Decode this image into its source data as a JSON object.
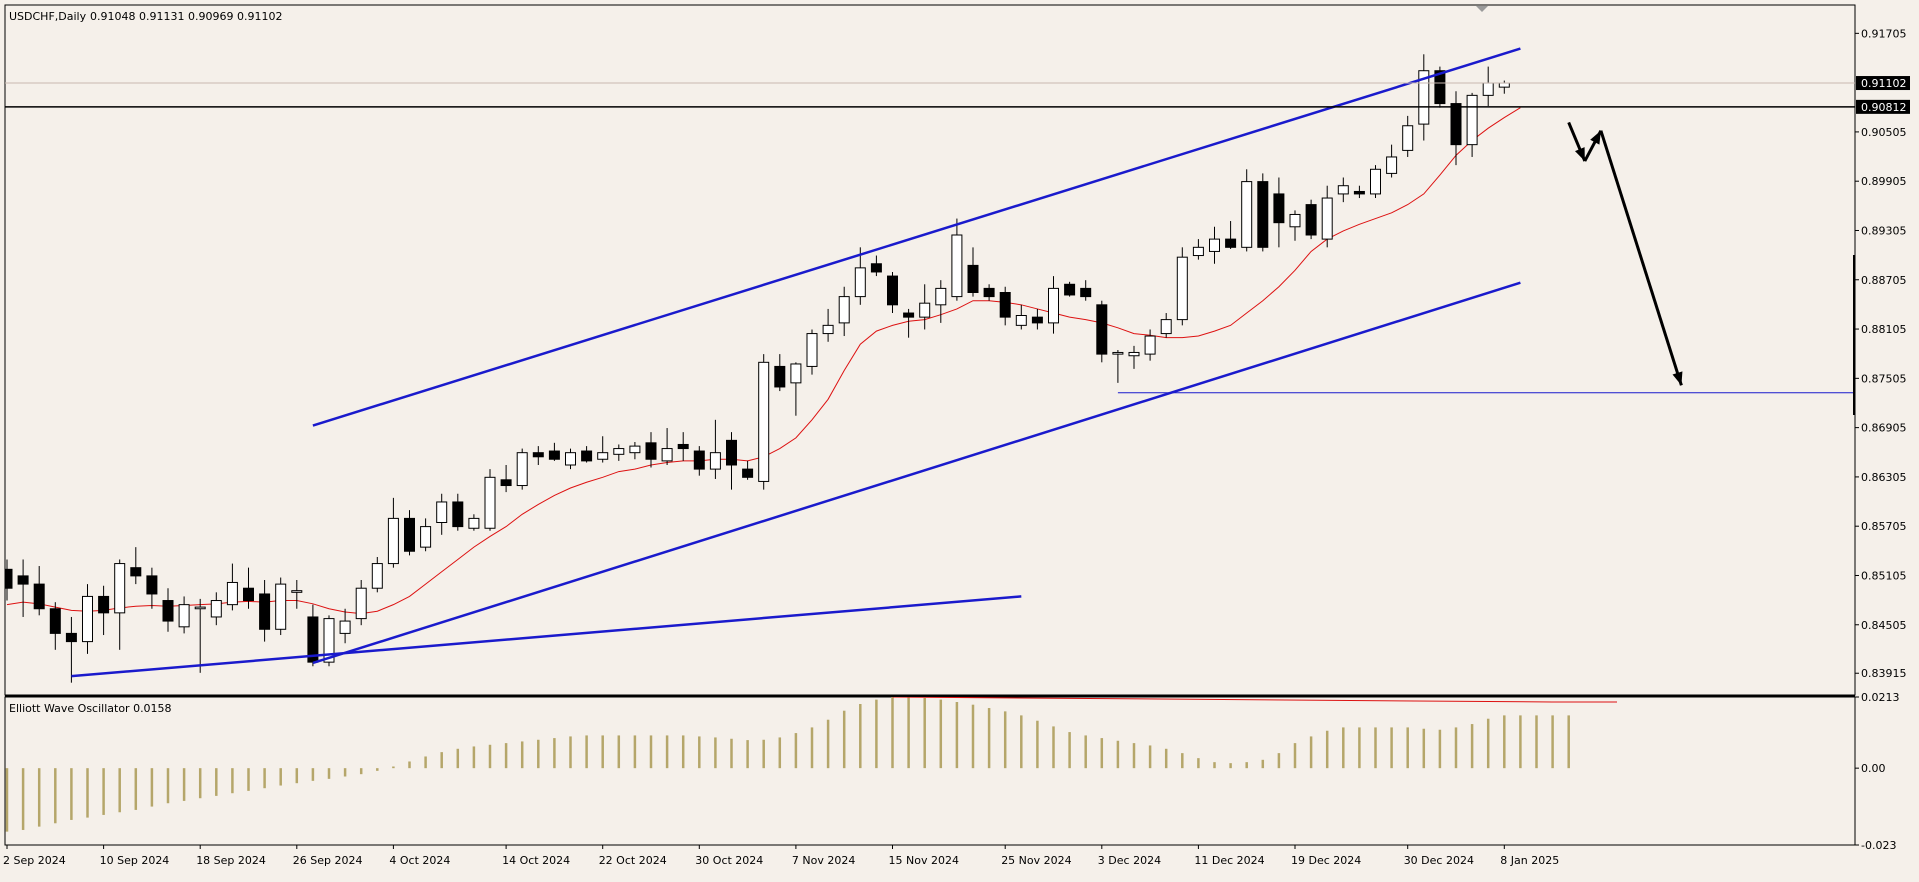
{
  "header": {
    "symbol_tf": "USDCHF,Daily",
    "ohlc": "0.91048 0.91131 0.90969 0.91102"
  },
  "oscillator": {
    "label": "Elliott Wave Oscillator 0.0158",
    "axis_labels": [
      "0.0213",
      "0.00",
      "-0.023"
    ]
  },
  "price_axis": {
    "labels": [
      "0.91705",
      "0.90505",
      "0.89905",
      "0.89305",
      "0.88705",
      "0.88105",
      "0.87505",
      "0.86905",
      "0.86305",
      "0.85705",
      "0.85105",
      "0.84505",
      "0.83915"
    ],
    "current_price_tag": "0.91102",
    "level_tag": "0.90812"
  },
  "time_axis": {
    "labels": [
      "2 Sep 2024",
      "10 Sep 2024",
      "18 Sep 2024",
      "26 Sep 2024",
      "4 Oct 2024",
      "14 Oct 2024",
      "22 Oct 2024",
      "30 Oct 2024",
      "7 Nov 2024",
      "15 Nov 2024",
      "25 Nov 2024",
      "3 Dec 2024",
      "11 Dec 2024",
      "19 Dec 2024",
      "30 Dec 2024",
      "8 Jan 2025"
    ]
  },
  "colors": {
    "background": "#f5f0ea",
    "channel": "#1a1acc",
    "ma_line": "#dd1111",
    "oscillator_bars": "#b5a66a",
    "bull_body": "#ffffff",
    "bear_body": "#000000"
  },
  "chart_data": {
    "type": "candlestick",
    "symbol": "USDCHF",
    "timeframe": "Daily",
    "ylim": [
      0.8365,
      0.9205
    ],
    "candles": [
      {
        "o": 0.8518,
        "h": 0.853,
        "l": 0.848,
        "c": 0.8495
      },
      {
        "o": 0.851,
        "h": 0.853,
        "l": 0.846,
        "c": 0.85
      },
      {
        "o": 0.85,
        "h": 0.8522,
        "l": 0.8462,
        "c": 0.847
      },
      {
        "o": 0.847,
        "h": 0.8478,
        "l": 0.842,
        "c": 0.844
      },
      {
        "o": 0.844,
        "h": 0.846,
        "l": 0.838,
        "c": 0.843
      },
      {
        "o": 0.843,
        "h": 0.85,
        "l": 0.8415,
        "c": 0.8485
      },
      {
        "o": 0.8485,
        "h": 0.8498,
        "l": 0.8438,
        "c": 0.8465
      },
      {
        "o": 0.8465,
        "h": 0.853,
        "l": 0.842,
        "c": 0.8525
      },
      {
        "o": 0.852,
        "h": 0.8545,
        "l": 0.85,
        "c": 0.851
      },
      {
        "o": 0.851,
        "h": 0.852,
        "l": 0.847,
        "c": 0.8488
      },
      {
        "o": 0.848,
        "h": 0.8495,
        "l": 0.8442,
        "c": 0.8455
      },
      {
        "o": 0.8448,
        "h": 0.8485,
        "l": 0.844,
        "c": 0.8475
      },
      {
        "o": 0.847,
        "h": 0.8482,
        "l": 0.8392,
        "c": 0.8472
      },
      {
        "o": 0.846,
        "h": 0.849,
        "l": 0.845,
        "c": 0.848
      },
      {
        "o": 0.8475,
        "h": 0.8525,
        "l": 0.8468,
        "c": 0.8502
      },
      {
        "o": 0.8495,
        "h": 0.852,
        "l": 0.847,
        "c": 0.848
      },
      {
        "o": 0.8488,
        "h": 0.8505,
        "l": 0.843,
        "c": 0.8445
      },
      {
        "o": 0.8445,
        "h": 0.8508,
        "l": 0.8438,
        "c": 0.85
      },
      {
        "o": 0.849,
        "h": 0.8505,
        "l": 0.847,
        "c": 0.8492
      },
      {
        "o": 0.846,
        "h": 0.8475,
        "l": 0.84,
        "c": 0.8405
      },
      {
        "o": 0.8405,
        "h": 0.8462,
        "l": 0.84,
        "c": 0.8458
      },
      {
        "o": 0.844,
        "h": 0.847,
        "l": 0.8428,
        "c": 0.8455
      },
      {
        "o": 0.8458,
        "h": 0.8505,
        "l": 0.845,
        "c": 0.8495
      },
      {
        "o": 0.8495,
        "h": 0.8533,
        "l": 0.849,
        "c": 0.8525
      },
      {
        "o": 0.8525,
        "h": 0.8605,
        "l": 0.852,
        "c": 0.858
      },
      {
        "o": 0.858,
        "h": 0.859,
        "l": 0.8535,
        "c": 0.854
      },
      {
        "o": 0.8545,
        "h": 0.858,
        "l": 0.854,
        "c": 0.857
      },
      {
        "o": 0.8575,
        "h": 0.861,
        "l": 0.856,
        "c": 0.86
      },
      {
        "o": 0.86,
        "h": 0.861,
        "l": 0.8565,
        "c": 0.857
      },
      {
        "o": 0.8568,
        "h": 0.8585,
        "l": 0.8565,
        "c": 0.858
      },
      {
        "o": 0.8568,
        "h": 0.864,
        "l": 0.8565,
        "c": 0.863
      },
      {
        "o": 0.8627,
        "h": 0.8645,
        "l": 0.8612,
        "c": 0.862
      },
      {
        "o": 0.862,
        "h": 0.8665,
        "l": 0.8615,
        "c": 0.866
      },
      {
        "o": 0.866,
        "h": 0.8668,
        "l": 0.8645,
        "c": 0.8655
      },
      {
        "o": 0.8662,
        "h": 0.8672,
        "l": 0.865,
        "c": 0.8652
      },
      {
        "o": 0.8645,
        "h": 0.8665,
        "l": 0.864,
        "c": 0.866
      },
      {
        "o": 0.8662,
        "h": 0.8668,
        "l": 0.8648,
        "c": 0.865
      },
      {
        "o": 0.8652,
        "h": 0.868,
        "l": 0.8648,
        "c": 0.866
      },
      {
        "o": 0.8658,
        "h": 0.867,
        "l": 0.865,
        "c": 0.8665
      },
      {
        "o": 0.866,
        "h": 0.8673,
        "l": 0.8652,
        "c": 0.8668
      },
      {
        "o": 0.8672,
        "h": 0.8685,
        "l": 0.8642,
        "c": 0.8652
      },
      {
        "o": 0.865,
        "h": 0.869,
        "l": 0.8645,
        "c": 0.8665
      },
      {
        "o": 0.867,
        "h": 0.8685,
        "l": 0.865,
        "c": 0.8665
      },
      {
        "o": 0.8662,
        "h": 0.8668,
        "l": 0.8632,
        "c": 0.864
      },
      {
        "o": 0.864,
        "h": 0.87,
        "l": 0.8628,
        "c": 0.866
      },
      {
        "o": 0.8675,
        "h": 0.8685,
        "l": 0.8615,
        "c": 0.8645
      },
      {
        "o": 0.864,
        "h": 0.865,
        "l": 0.8627,
        "c": 0.863
      },
      {
        "o": 0.8625,
        "h": 0.878,
        "l": 0.8615,
        "c": 0.877
      },
      {
        "o": 0.8765,
        "h": 0.878,
        "l": 0.8735,
        "c": 0.874
      },
      {
        "o": 0.8745,
        "h": 0.877,
        "l": 0.8705,
        "c": 0.8768
      },
      {
        "o": 0.8765,
        "h": 0.881,
        "l": 0.8755,
        "c": 0.8805
      },
      {
        "o": 0.8805,
        "h": 0.8835,
        "l": 0.8795,
        "c": 0.8815
      },
      {
        "o": 0.8818,
        "h": 0.8862,
        "l": 0.8802,
        "c": 0.885
      },
      {
        "o": 0.885,
        "h": 0.891,
        "l": 0.884,
        "c": 0.8885
      },
      {
        "o": 0.889,
        "h": 0.89,
        "l": 0.8875,
        "c": 0.888
      },
      {
        "o": 0.8875,
        "h": 0.888,
        "l": 0.883,
        "c": 0.884
      },
      {
        "o": 0.883,
        "h": 0.8835,
        "l": 0.88,
        "c": 0.8825
      },
      {
        "o": 0.8825,
        "h": 0.8865,
        "l": 0.881,
        "c": 0.8842
      },
      {
        "o": 0.884,
        "h": 0.887,
        "l": 0.8818,
        "c": 0.886
      },
      {
        "o": 0.885,
        "h": 0.8945,
        "l": 0.8845,
        "c": 0.8925
      },
      {
        "o": 0.8888,
        "h": 0.891,
        "l": 0.885,
        "c": 0.8855
      },
      {
        "o": 0.886,
        "h": 0.8865,
        "l": 0.8845,
        "c": 0.885
      },
      {
        "o": 0.8855,
        "h": 0.8862,
        "l": 0.8815,
        "c": 0.8825
      },
      {
        "o": 0.8815,
        "h": 0.884,
        "l": 0.881,
        "c": 0.8827
      },
      {
        "o": 0.8825,
        "h": 0.8835,
        "l": 0.881,
        "c": 0.8818
      },
      {
        "o": 0.8818,
        "h": 0.8875,
        "l": 0.8805,
        "c": 0.886
      },
      {
        "o": 0.8865,
        "h": 0.8868,
        "l": 0.885,
        "c": 0.8852
      },
      {
        "o": 0.886,
        "h": 0.887,
        "l": 0.8845,
        "c": 0.885
      },
      {
        "o": 0.884,
        "h": 0.8845,
        "l": 0.877,
        "c": 0.878
      },
      {
        "o": 0.878,
        "h": 0.8785,
        "l": 0.8745,
        "c": 0.8782
      },
      {
        "o": 0.8778,
        "h": 0.879,
        "l": 0.8762,
        "c": 0.8782
      },
      {
        "o": 0.878,
        "h": 0.881,
        "l": 0.8772,
        "c": 0.8802
      },
      {
        "o": 0.8805,
        "h": 0.883,
        "l": 0.88,
        "c": 0.8822
      },
      {
        "o": 0.8822,
        "h": 0.891,
        "l": 0.8815,
        "c": 0.8898
      },
      {
        "o": 0.89,
        "h": 0.892,
        "l": 0.8895,
        "c": 0.891
      },
      {
        "o": 0.8905,
        "h": 0.8935,
        "l": 0.889,
        "c": 0.892
      },
      {
        "o": 0.892,
        "h": 0.8942,
        "l": 0.8908,
        "c": 0.891
      },
      {
        "o": 0.891,
        "h": 0.9005,
        "l": 0.8905,
        "c": 0.899
      },
      {
        "o": 0.899,
        "h": 0.9,
        "l": 0.8905,
        "c": 0.891
      },
      {
        "o": 0.8975,
        "h": 0.8995,
        "l": 0.891,
        "c": 0.894
      },
      {
        "o": 0.8935,
        "h": 0.8955,
        "l": 0.8918,
        "c": 0.895
      },
      {
        "o": 0.8962,
        "h": 0.8968,
        "l": 0.892,
        "c": 0.8925
      },
      {
        "o": 0.892,
        "h": 0.8985,
        "l": 0.891,
        "c": 0.897
      },
      {
        "o": 0.8975,
        "h": 0.8995,
        "l": 0.8965,
        "c": 0.8985
      },
      {
        "o": 0.8978,
        "h": 0.8985,
        "l": 0.897,
        "c": 0.8975
      },
      {
        "o": 0.8975,
        "h": 0.901,
        "l": 0.897,
        "c": 0.9005
      },
      {
        "o": 0.9,
        "h": 0.9035,
        "l": 0.8995,
        "c": 0.902
      },
      {
        "o": 0.9028,
        "h": 0.907,
        "l": 0.902,
        "c": 0.9058
      },
      {
        "o": 0.906,
        "h": 0.9145,
        "l": 0.904,
        "c": 0.9125
      },
      {
        "o": 0.9125,
        "h": 0.913,
        "l": 0.908,
        "c": 0.9085
      },
      {
        "o": 0.9085,
        "h": 0.91,
        "l": 0.901,
        "c": 0.9035
      },
      {
        "o": 0.9035,
        "h": 0.9098,
        "l": 0.902,
        "c": 0.9095
      },
      {
        "o": 0.9095,
        "h": 0.913,
        "l": 0.9082,
        "c": 0.911
      },
      {
        "o": 0.9105,
        "h": 0.9113,
        "l": 0.9097,
        "c": 0.911
      }
    ],
    "ma_line": [
      0.8475,
      0.8478,
      0.8476,
      0.8472,
      0.8468,
      0.8467,
      0.8468,
      0.8471,
      0.8473,
      0.8474,
      0.8473,
      0.8474,
      0.8475,
      0.8476,
      0.8478,
      0.8479,
      0.8478,
      0.848,
      0.848,
      0.8476,
      0.847,
      0.8466,
      0.8464,
      0.8467,
      0.8475,
      0.8485,
      0.85,
      0.8515,
      0.853,
      0.8545,
      0.8558,
      0.857,
      0.8585,
      0.8597,
      0.8608,
      0.8617,
      0.8624,
      0.863,
      0.8637,
      0.864,
      0.8645,
      0.8648,
      0.865,
      0.865,
      0.8652,
      0.8652,
      0.865,
      0.8655,
      0.8665,
      0.8678,
      0.87,
      0.8725,
      0.876,
      0.8792,
      0.8808,
      0.8815,
      0.882,
      0.8822,
      0.8828,
      0.8835,
      0.8845,
      0.8845,
      0.8843,
      0.884,
      0.8835,
      0.883,
      0.8825,
      0.8822,
      0.8818,
      0.8812,
      0.8805,
      0.8803,
      0.88,
      0.88,
      0.8802,
      0.8808,
      0.8815,
      0.883,
      0.8845,
      0.8862,
      0.8882,
      0.8905,
      0.892,
      0.893,
      0.8938,
      0.8945,
      0.8952,
      0.8962,
      0.8975,
      0.8998,
      0.9022,
      0.904,
      0.9055,
      0.9068,
      0.908
    ],
    "channel_lines": [
      {
        "label": "channel-upper",
        "points": [
          [
            19,
            0.8693
          ],
          [
            94,
            0.9152
          ]
        ]
      },
      {
        "label": "channel-lower",
        "points": [
          [
            19,
            0.8404
          ],
          [
            94,
            0.8867
          ]
        ]
      },
      {
        "label": "lower-trendline",
        "points": [
          [
            4,
            0.8388
          ],
          [
            63,
            0.8485
          ]
        ]
      }
    ],
    "horizontal_levels": [
      {
        "label": "resistance",
        "value": 0.9081
      },
      {
        "label": "support",
        "value": 0.8733,
        "from_index": 69
      }
    ],
    "projection_path": [
      [
        97,
        0.9062
      ],
      [
        98,
        0.9015
      ],
      [
        99,
        0.9052
      ],
      [
        104,
        0.8742
      ]
    ],
    "y_ticks": [
      0.91705,
      0.90505,
      0.89905,
      0.89305,
      0.88705,
      0.88105,
      0.87505,
      0.86905,
      0.86305,
      0.85705,
      0.85105,
      0.84505,
      0.83915
    ],
    "x_labels": [
      "2 Sep 2024",
      "10 Sep 2024",
      "18 Sep 2024",
      "26 Sep 2024",
      "4 Oct 2024",
      "14 Oct 2024",
      "22 Oct 2024",
      "30 Oct 2024",
      "7 Nov 2024",
      "15 Nov 2024",
      "25 Nov 2024",
      "3 Dec 2024",
      "11 Dec 2024",
      "19 Dec 2024",
      "30 Dec 2024",
      "8 Jan 2025"
    ],
    "oscillator": {
      "name": "Elliott Wave Oscillator",
      "current": 0.0158,
      "ylim": [
        -0.023,
        0.0213
      ],
      "values": [
        -0.019,
        -0.0185,
        -0.0175,
        -0.0165,
        -0.0155,
        -0.0148,
        -0.014,
        -0.0132,
        -0.0125,
        -0.0115,
        -0.0105,
        -0.0098,
        -0.009,
        -0.0083,
        -0.0075,
        -0.0068,
        -0.006,
        -0.0052,
        -0.0045,
        -0.0038,
        -0.0032,
        -0.0025,
        -0.0018,
        -0.0008,
        0.0005,
        0.002,
        0.0035,
        0.0048,
        0.0058,
        0.0065,
        0.007,
        0.0075,
        0.008,
        0.0085,
        0.009,
        0.0095,
        0.0098,
        0.0098,
        0.0098,
        0.0098,
        0.0098,
        0.0098,
        0.0098,
        0.0095,
        0.0092,
        0.0088,
        0.0084,
        0.0085,
        0.0092,
        0.0105,
        0.0122,
        0.0145,
        0.0172,
        0.0192,
        0.0205,
        0.0213,
        0.0212,
        0.021,
        0.0205,
        0.0198,
        0.019,
        0.018,
        0.017,
        0.0158,
        0.0142,
        0.0125,
        0.0108,
        0.0098,
        0.009,
        0.0082,
        0.0075,
        0.0068,
        0.0058,
        0.0045,
        0.003,
        0.0018,
        0.0015,
        0.0018,
        0.0025,
        0.0045,
        0.0075,
        0.0095,
        0.0112,
        0.0122,
        0.0122,
        0.0122,
        0.0122,
        0.0122,
        0.0118,
        0.0115,
        0.0122,
        0.0132,
        0.0148,
        0.0158,
        0.0158,
        0.0158,
        0.0158,
        0.0158
      ],
      "signal": [
        {
          "index": 55,
          "value": 0.0213
        },
        {
          "index": 96,
          "value": 0.0198
        },
        {
          "index": 100,
          "value": 0.0198
        }
      ]
    }
  }
}
